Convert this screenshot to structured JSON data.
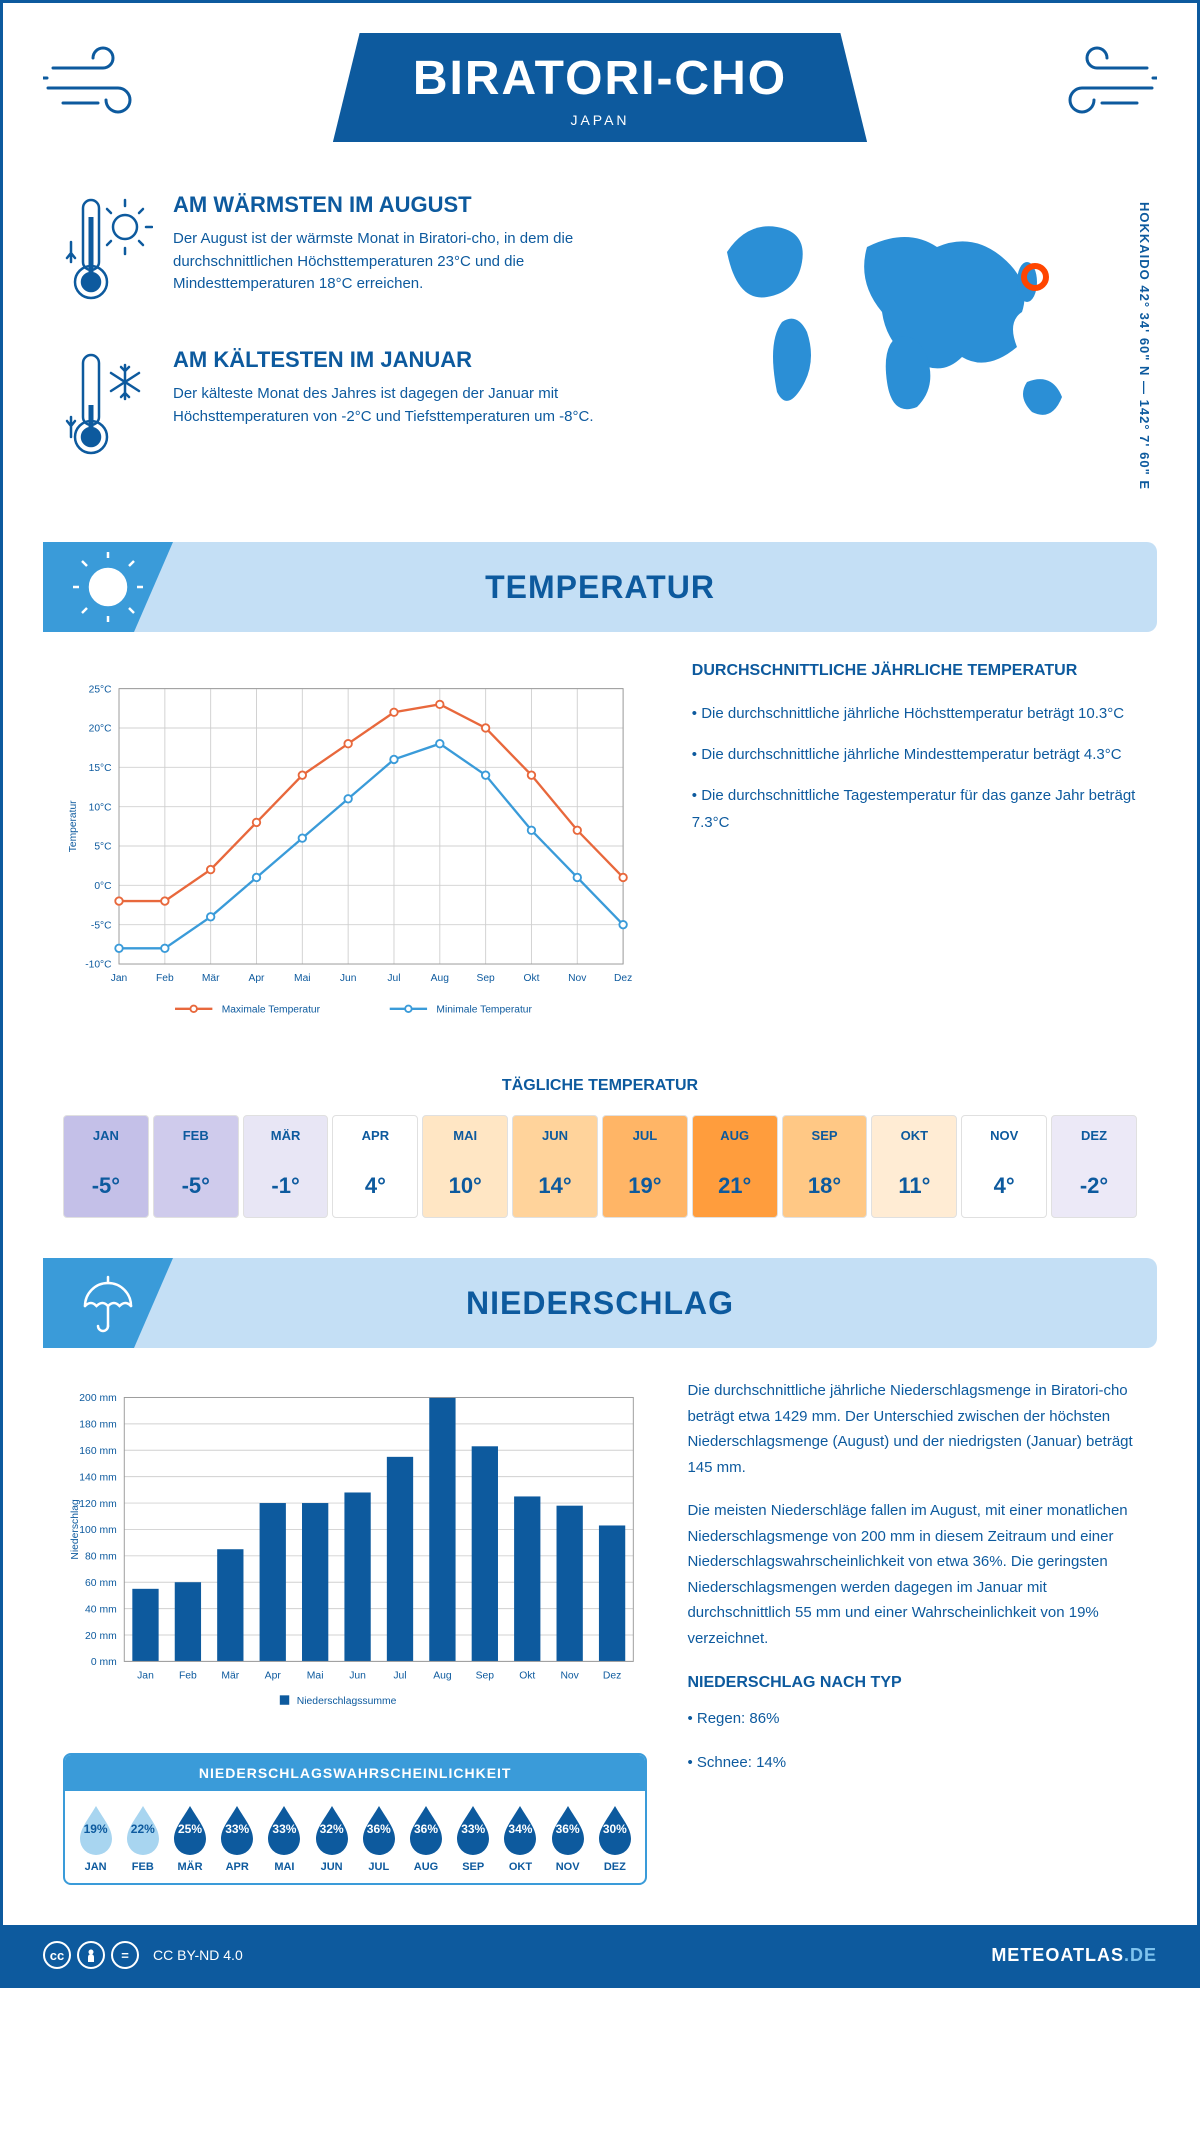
{
  "header": {
    "title": "BIRATORI-CHO",
    "subtitle": "JAPAN"
  },
  "coords": "HOKKAIDO     42° 34' 60\" N — 142° 7' 60\" E",
  "facts": {
    "warm": {
      "title": "AM WÄRMSTEN IM AUGUST",
      "text": "Der August ist der wärmste Monat in Biratori-cho, in dem die durchschnittlichen Höchsttemperaturen 23°C und die Mindesttemperaturen 18°C erreichen."
    },
    "cold": {
      "title": "AM KÄLTESTEN IM JANUAR",
      "text": "Der kälteste Monat des Jahres ist dagegen der Januar mit Höchsttemperaturen von -2°C und Tiefsttemperaturen um -8°C."
    }
  },
  "temperature_section": {
    "title": "TEMPERATUR",
    "text_title": "DURCHSCHNITTLICHE JÄHRLICHE TEMPERATUR",
    "bullet1": "• Die durchschnittliche jährliche Höchsttemperatur beträgt 10.3°C",
    "bullet2": "• Die durchschnittliche jährliche Mindesttemperatur beträgt 4.3°C",
    "bullet3": "• Die durchschnittliche Tagestemperatur für das ganze Jahr beträgt 7.3°C",
    "chart": {
      "type": "line",
      "months": [
        "Jan",
        "Feb",
        "Mär",
        "Apr",
        "Mai",
        "Jun",
        "Jul",
        "Aug",
        "Sep",
        "Okt",
        "Nov",
        "Dez"
      ],
      "max_temp": [
        -2,
        -2,
        2,
        8,
        14,
        18,
        22,
        23,
        20,
        14,
        7,
        1
      ],
      "min_temp": [
        -8,
        -8,
        -4,
        1,
        6,
        11,
        16,
        18,
        14,
        7,
        1,
        -5
      ],
      "max_color": "#e8683c",
      "min_color": "#3a9bd9",
      "ylabel": "Temperatur",
      "ylabel_rotated": true,
      "ylim": [
        -10,
        25
      ],
      "ytick_step": 5,
      "ytick_suffix": "°C",
      "grid_color": "#d0d0d0",
      "background_color": "#ffffff",
      "line_width": 2.5,
      "marker": "circle",
      "marker_size": 4,
      "legend_max": "Maximale Temperatur",
      "legend_min": "Minimale Temperatur"
    }
  },
  "daily_temp": {
    "title": "TÄGLICHE TEMPERATUR",
    "months": [
      "JAN",
      "FEB",
      "MÄR",
      "APR",
      "MAI",
      "JUN",
      "JUL",
      "AUG",
      "SEP",
      "OKT",
      "NOV",
      "DEZ"
    ],
    "values": [
      "-5°",
      "-5°",
      "-1°",
      "4°",
      "10°",
      "14°",
      "19°",
      "21°",
      "18°",
      "11°",
      "4°",
      "-2°"
    ],
    "bg_colors": [
      "#c4c0e8",
      "#cfcbec",
      "#e8e6f5",
      "#ffffff",
      "#ffe6c4",
      "#ffd39b",
      "#ffb566",
      "#ff9d3d",
      "#ffc885",
      "#ffecd4",
      "#ffffff",
      "#ece9f7"
    ],
    "border_color": "#e0e0e0"
  },
  "precipitation_section": {
    "title": "NIEDERSCHLAG",
    "chart": {
      "type": "bar",
      "months": [
        "Jan",
        "Feb",
        "Mär",
        "Apr",
        "Mai",
        "Jun",
        "Jul",
        "Aug",
        "Sep",
        "Okt",
        "Nov",
        "Dez"
      ],
      "values": [
        55,
        60,
        85,
        120,
        120,
        128,
        155,
        200,
        163,
        125,
        118,
        103
      ],
      "bar_color": "#0d5a9e",
      "ylabel": "Niederschlag",
      "ylim": [
        0,
        200
      ],
      "ytick_step": 20,
      "ytick_suffix": " mm",
      "grid_color": "#d0d0d0",
      "legend": "Niederschlagssumme"
    },
    "text1": "Die durchschnittliche jährliche Niederschlagsmenge in Biratori-cho beträgt etwa 1429 mm. Der Unterschied zwischen der höchsten Niederschlagsmenge (August) und der niedrigsten (Januar) beträgt 145 mm.",
    "text2": "Die meisten Niederschläge fallen im August, mit einer monatlichen Niederschlagsmenge von 200 mm in diesem Zeitraum und einer Niederschlagswahrscheinlichkeit von etwa 36%. Die geringsten Niederschlagsmengen werden dagegen im Januar mit durchschnittlich 55 mm und einer Wahrscheinlichkeit von 19% verzeichnet.",
    "type_title": "NIEDERSCHLAG NACH TYP",
    "type_rain": "• Regen: 86%",
    "type_snow": "• Schnee: 14%"
  },
  "probability": {
    "title": "NIEDERSCHLAGSWAHRSCHEINLICHKEIT",
    "months": [
      "JAN",
      "FEB",
      "MÄR",
      "APR",
      "MAI",
      "JUN",
      "JUL",
      "AUG",
      "SEP",
      "OKT",
      "NOV",
      "DEZ"
    ],
    "values": [
      "19%",
      "22%",
      "25%",
      "33%",
      "33%",
      "32%",
      "36%",
      "36%",
      "33%",
      "34%",
      "36%",
      "30%"
    ],
    "shades": [
      "light",
      "light",
      "dark",
      "dark",
      "dark",
      "dark",
      "dark",
      "dark",
      "dark",
      "dark",
      "dark",
      "dark"
    ],
    "light_fill": "#a8d5f0",
    "dark_fill": "#0d5a9e"
  },
  "footer": {
    "license": "CC BY-ND 4.0",
    "site_main": "METEOATLAS",
    "site_tld": ".DE"
  }
}
